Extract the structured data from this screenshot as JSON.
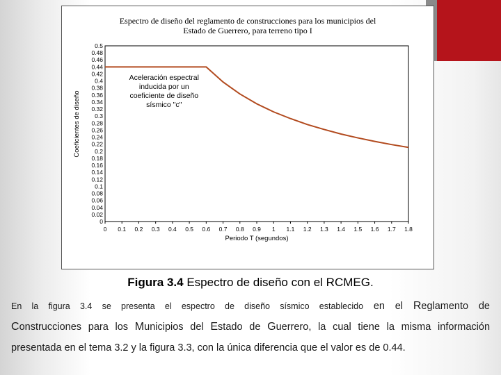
{
  "slide": {
    "caption_prefix": "Figura 3.4",
    "caption_rest": " Espectro de diseño con el RCMEG.",
    "paragraph": {
      "line1_small": "En la figura 3.4 se presenta el espectro de diseño sísmico establecido",
      "line1_rest_a": " en el ",
      "line1_cap_r": "R",
      "line1_rest_b": "eglamento de",
      "line2_cap_c": "C",
      "line2_a": "onstrucciones para los ",
      "line2_cap_m": "M",
      "line2_b": "unicipios del ",
      "line2_cap_e": "E",
      "line2_c": "stado de ",
      "line2_cap_g": "G",
      "line2_d": "uerrero, la cual tiene la misma información",
      "line3": "presentada en el tema 3.2 y la figura 3.3, con la única diferencia que el valor es de 0.44."
    },
    "colors": {
      "accent": "#b5141b",
      "curve": "#b24a1e"
    }
  },
  "chart_data": {
    "type": "line",
    "title_line1": "Espectro de diseño del reglamento de construcciones para los municipios del",
    "title_line2": "Estado de Guerrero, para terreno tipo I",
    "xlabel": "Periodo T (segundos)",
    "ylabel": "Coeficientes de diseño",
    "xlim": [
      0,
      1.8
    ],
    "ylim": [
      0,
      0.5
    ],
    "x_ticks": [
      "0",
      "0.1",
      "0.2",
      "0.3",
      "0.4",
      "0.5",
      "0.6",
      "0.7",
      "0.8",
      "0.9",
      "1",
      "1.1",
      "1.2",
      "1.3",
      "1.4",
      "1.5",
      "1.6",
      "1.7",
      "1.8"
    ],
    "y_ticks": [
      "0",
      "0.02",
      "0.04",
      "0.06",
      "0.08",
      "0.1",
      "0.12",
      "0.14",
      "0.16",
      "0.18",
      "0.2",
      "0.22",
      "0.24",
      "0.26",
      "0.28",
      "0.3",
      "0.32",
      "0.34",
      "0.36",
      "0.38",
      "0.4",
      "0.42",
      "0.44",
      "0.46",
      "0.48",
      "0.5"
    ],
    "annotation": [
      "Aceleración espectral",
      "inducida por un",
      "coeficiente de diseño",
      "sísmico \"c\""
    ],
    "series": [
      {
        "x": [
          0.0,
          0.6,
          0.7,
          0.8,
          0.9,
          1.0,
          1.1,
          1.2,
          1.3,
          1.4,
          1.5,
          1.6,
          1.7,
          1.8
        ],
        "y": [
          0.44,
          0.44,
          0.397,
          0.363,
          0.335,
          0.312,
          0.293,
          0.276,
          0.262,
          0.249,
          0.238,
          0.228,
          0.219,
          0.211
        ]
      }
    ],
    "grid": false,
    "legend": "none"
  }
}
